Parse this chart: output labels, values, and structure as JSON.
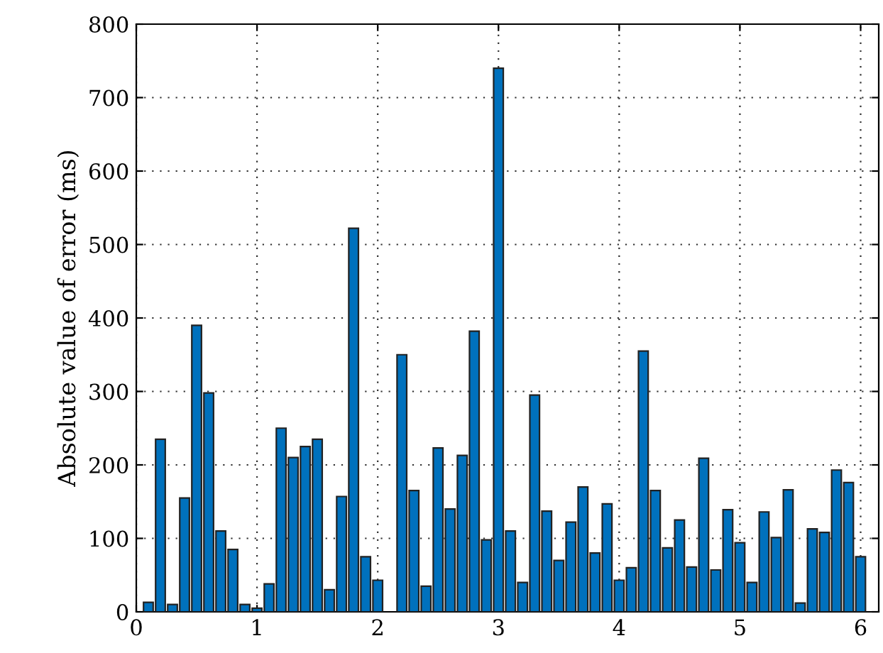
{
  "chart_data": {
    "type": "bar",
    "ylabel": "Absolute value of error (ms)",
    "x": [
      0.1,
      0.2,
      0.3,
      0.4,
      0.5,
      0.6,
      0.7,
      0.8,
      0.9,
      1.0,
      1.1,
      1.2,
      1.3,
      1.4,
      1.5,
      1.6,
      1.7,
      1.8,
      1.9,
      2.0,
      2.1,
      2.2,
      2.3,
      2.4,
      2.5,
      2.6,
      2.7,
      2.8,
      2.9,
      3.0,
      3.1,
      3.2,
      3.3,
      3.4,
      3.5,
      3.6,
      3.7,
      3.8,
      3.9,
      4.0,
      4.1,
      4.2,
      4.3,
      4.4,
      4.5,
      4.6,
      4.7,
      4.8,
      4.9,
      5.0,
      5.1,
      5.2,
      5.3,
      5.4,
      5.5,
      5.6,
      5.7,
      5.8,
      5.9,
      6.0
    ],
    "values": [
      13,
      235,
      10,
      155,
      390,
      298,
      110,
      85,
      10,
      5,
      38,
      250,
      210,
      225,
      235,
      30,
      157,
      522,
      75,
      43,
      null,
      350,
      165,
      35,
      223,
      140,
      213,
      382,
      98,
      740,
      110,
      40,
      295,
      137,
      70,
      122,
      170,
      80,
      147,
      43,
      60,
      355,
      165,
      87,
      125,
      61,
      209,
      57,
      139,
      94,
      40,
      136,
      101,
      166,
      12,
      113,
      108,
      193,
      176,
      75
    ],
    "color": "#0071bd",
    "xlim": [
      0,
      6.15
    ],
    "xticks": [
      0,
      1,
      2,
      3,
      4,
      5,
      6
    ],
    "ylim": [
      0,
      800
    ],
    "yticks": [
      0,
      100,
      200,
      300,
      400,
      500,
      600,
      700,
      800
    ],
    "grid": true
  }
}
